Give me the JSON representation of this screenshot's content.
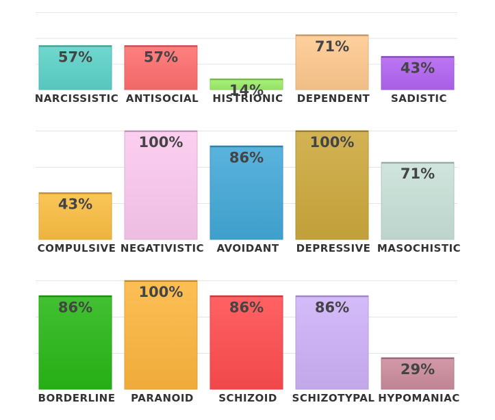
{
  "chart_data": [
    {
      "type": "bar",
      "categories": [
        "NARCISSISTIC",
        "ANTISOCIAL",
        "HISTRIONIC",
        "DEPENDENT",
        "SADISTIC"
      ],
      "values": [
        57,
        57,
        14,
        71,
        43
      ],
      "data_labels": [
        "57%",
        "57%",
        "14%",
        "71%",
        "43%"
      ],
      "colors": [
        "#5dd3c9",
        "#ff6f6f",
        "#9df06a",
        "#ffca90",
        "#b364f2"
      ],
      "ylim": [
        0,
        100
      ],
      "grid": true
    },
    {
      "type": "bar",
      "categories": [
        "COMPULSIVE",
        "NEGATIVISTIC",
        "AVOIDANT",
        "DEPRESSIVE",
        "MASOCHISTIC"
      ],
      "values": [
        43,
        100,
        86,
        100,
        71
      ],
      "data_labels": [
        "43%",
        "100%",
        "86%",
        "100%",
        "71%"
      ],
      "colors": [
        "#fbbe42",
        "#fcc9ef",
        "#43a9d8",
        "#cda93d",
        "#c8e2d8"
      ],
      "ylim": [
        0,
        100
      ],
      "grid": true
    },
    {
      "type": "bar",
      "categories": [
        "BORDERLINE",
        "PARANOID",
        "SCHIZOID",
        "SCHIZOTYPAL",
        "HYPOMANIAC"
      ],
      "values": [
        86,
        100,
        86,
        86,
        29
      ],
      "data_labels": [
        "86%",
        "100%",
        "86%",
        "86%",
        "29%"
      ],
      "colors": [
        "#28b816",
        "#fdb63e",
        "#ff4d4f",
        "#ceb2f8",
        "#cc8c9d"
      ],
      "ylim": [
        0,
        100
      ],
      "grid": true
    }
  ]
}
